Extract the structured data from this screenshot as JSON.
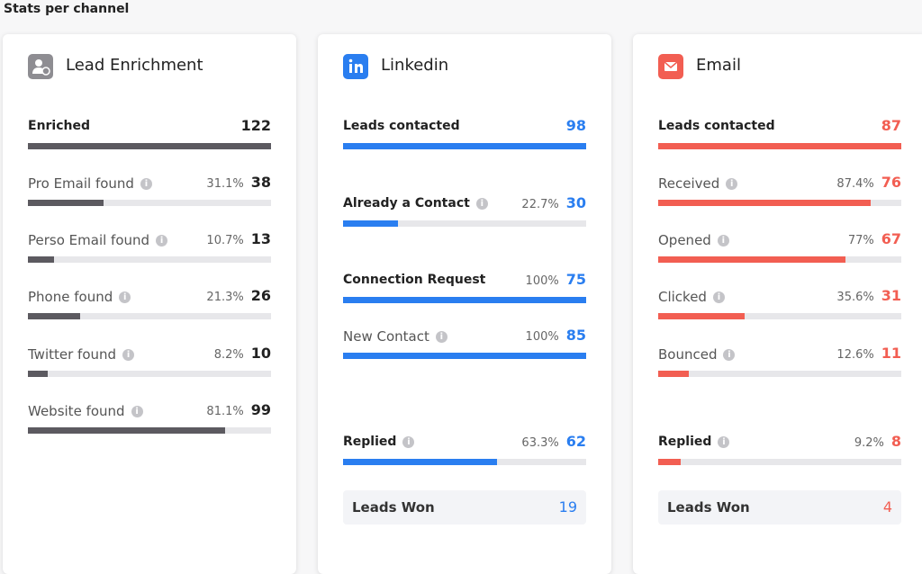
{
  "title": "Stats per channel",
  "cards": [
    {
      "title": "Lead Enrichment",
      "color": "#5c5a60",
      "count_color": "#222222",
      "rows": [
        {
          "label": "Enriched",
          "count": 122
        },
        {
          "label": "Pro Email found",
          "pct": {
            "value": 31.1,
            "label": "31.1%"
          },
          "count": 38
        },
        {
          "label": "Perso Email found",
          "pct": {
            "value": 10.7,
            "label": "10.7%"
          },
          "count": 13
        },
        {
          "label": "Phone found",
          "pct": {
            "value": 21.3,
            "label": "21.3%"
          },
          "count": 26
        },
        {
          "label": "Twitter found",
          "pct": {
            "value": 8.2,
            "label": "8.2%"
          },
          "count": 10
        },
        {
          "label": "Website found",
          "pct": {
            "value": 81.1,
            "label": "81.1%"
          },
          "count": 99
        }
      ]
    },
    {
      "title": "Linkedin",
      "color": "#2a7ef0",
      "count_color": "#2a7ef0",
      "rows": [
        {
          "label": "Leads contacted",
          "count": 98
        },
        {
          "label": "Already a Contact",
          "pct": {
            "value": 22.7,
            "label": "22.7%"
          },
          "count": 30
        },
        {
          "label": "Connection Request",
          "pct": 100,
          "count": 75
        },
        {
          "label": "New Contact",
          "pct": 100,
          "count": 85
        },
        {
          "label": "Replied",
          "pct": {
            "value": 63.3,
            "label": "63.3%"
          },
          "count": 62
        }
      ],
      "won": {
        "label": "Leads Won",
        "count": 19
      }
    },
    {
      "title": "Email",
      "color": "#f25e52",
      "count_color": "#f25e52",
      "rows": [
        {
          "label": "Leads contacted",
          "count": 87
        },
        {
          "label": "Received",
          "pct": {
            "value": 87.4,
            "label": "87.4%"
          },
          "count": 76
        },
        {
          "label": "Opened",
          "pct": 77,
          "count": 67
        },
        {
          "label": "Clicked",
          "pct": {
            "value": 35.6,
            "label": "35.6%"
          },
          "count": 31
        },
        {
          "label": "Bounced",
          "pct": {
            "value": 12.6,
            "label": "12.6%"
          },
          "count": 11
        },
        {
          "label": "Replied",
          "pct": {
            "value": 9.2,
            "label": "9.2%"
          },
          "count": 8
        }
      ],
      "won": {
        "label": "Leads Won",
        "count": 4
      }
    }
  ]
}
